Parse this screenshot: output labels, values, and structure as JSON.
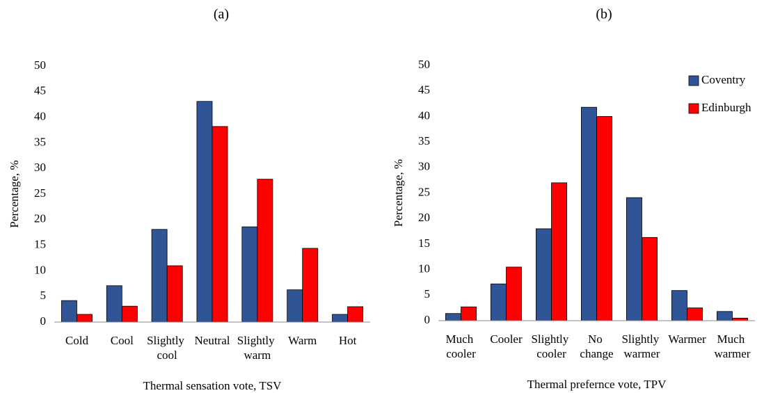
{
  "chart_data": [
    {
      "type": "bar",
      "title": "(a)",
      "xlabel": "Thermal sensation vote, TSV",
      "ylabel": "Percentage, %",
      "categories": [
        "Cold",
        "Cool",
        "Slightly cool",
        "Neutral",
        "Slightly warm",
        "Warm",
        "Hot"
      ],
      "series": [
        {
          "color": "#2f5597",
          "values": [
            4.2,
            7.1,
            18.1,
            43.1,
            18.6,
            6.3,
            1.5
          ]
        },
        {
          "color": "#ff0000",
          "values": [
            1.5,
            3.1,
            11.0,
            38.2,
            27.9,
            14.4,
            3.0
          ]
        }
      ],
      "ylim": [
        0,
        50
      ],
      "yticks": [
        0,
        5,
        10,
        15,
        20,
        25,
        30,
        35,
        40,
        45,
        50
      ],
      "grid": false
    },
    {
      "type": "bar",
      "title": "(b)",
      "xlabel": "Thermal prefernce vote, TPV",
      "ylabel": "Percentage, %",
      "categories": [
        "Much cooler",
        "Cooler",
        "Slightly cooler",
        "No change",
        "Slightly warmer",
        "Warmer",
        "Much warmer"
      ],
      "series": [
        {
          "name": "Coventry",
          "color": "#2f5597",
          "values": [
            1.4,
            7.2,
            18.0,
            41.8,
            24.1,
            5.9,
            1.8
          ]
        },
        {
          "name": "Edinburgh",
          "color": "#ff0000",
          "values": [
            2.7,
            10.5,
            27.0,
            40.0,
            16.3,
            2.5,
            0.5
          ]
        }
      ],
      "ylim": [
        0,
        50
      ],
      "yticks": [
        0,
        5,
        10,
        15,
        20,
        25,
        30,
        35,
        40,
        45,
        50
      ],
      "grid": false,
      "legend": "upper right"
    }
  ]
}
